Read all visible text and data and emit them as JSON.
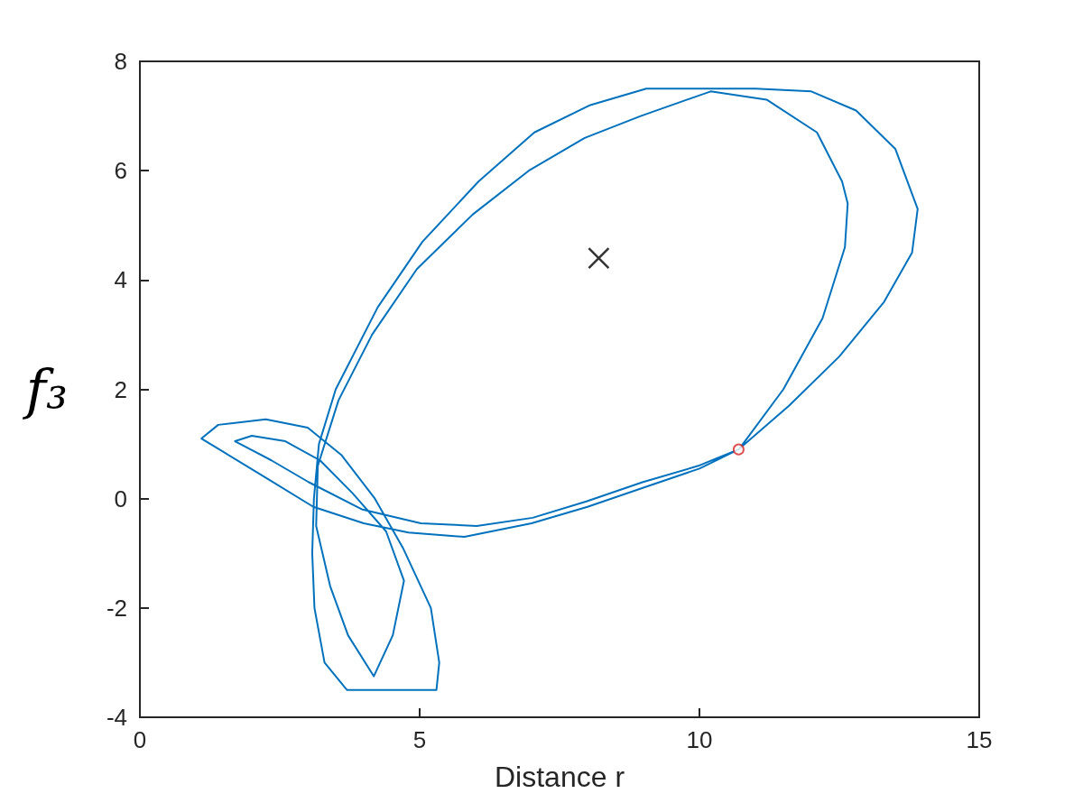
{
  "chart_data": {
    "type": "line",
    "xlabel": "Distance r",
    "ylabel": "f₃",
    "xlim": [
      0,
      15
    ],
    "xticks": [
      0,
      5,
      10,
      15
    ],
    "ylim": [
      -4,
      8
    ],
    "yticks": [
      -4,
      -2,
      0,
      2,
      4,
      6,
      8
    ],
    "series": [
      {
        "color": "#0072bd",
        "marker": "none",
        "line_style": "solid",
        "x": [
          10.7,
          10,
          9,
          8,
          7,
          5.8,
          4.8,
          4,
          3.1,
          2.3,
          1.5,
          1.1,
          1.4,
          2.25,
          3,
          3.6,
          4.2,
          4.7,
          5.2,
          5.35,
          5.3,
          4.5,
          3.7,
          3.3,
          3.12,
          3.08,
          3.11,
          3.2,
          3.5,
          4.25,
          5.05,
          6.05,
          7.05,
          8.05,
          9.05,
          10.05,
          11,
          12,
          12.8,
          13.5,
          13.9,
          13.8,
          13.3,
          12.5,
          11.6,
          10.72,
          11.5,
          12.2,
          12.6,
          12.65,
          12.55,
          12.1,
          11.2,
          10.2,
          8.95,
          7.95,
          6.95,
          5.95,
          4.95,
          4.15,
          3.55,
          3.18,
          3.15,
          3.4,
          3.72,
          4.18,
          4.52,
          4.72,
          4.4,
          3.8,
          3.22,
          2.6,
          2,
          1.7,
          2.35,
          3.02,
          3.98,
          5.02,
          6.02,
          7.02,
          7.98,
          8.98,
          9.98,
          10.65
        ],
        "values": [
          0.9,
          0.55,
          0.2,
          -0.15,
          -0.45,
          -0.7,
          -0.62,
          -0.45,
          -0.15,
          0.35,
          0.85,
          1.1,
          1.35,
          1.45,
          1.3,
          0.8,
          0,
          -0.9,
          -2,
          -3,
          -3.5,
          -3.5,
          -3.5,
          -3,
          -2,
          -1,
          0,
          1,
          2,
          3.5,
          4.7,
          5.8,
          6.7,
          7.2,
          7.5,
          7.5,
          7.5,
          7.45,
          7.1,
          6.4,
          5.3,
          4.5,
          3.6,
          2.6,
          1.7,
          0.92,
          2,
          3.3,
          4.6,
          5.4,
          5.8,
          6.7,
          7.3,
          7.45,
          7,
          6.6,
          6,
          5.2,
          4.2,
          3,
          1.8,
          0.6,
          -0.5,
          -1.6,
          -2.5,
          -3.25,
          -2.5,
          -1.5,
          -0.6,
          0.1,
          0.7,
          1.05,
          1.15,
          1.05,
          0.7,
          0.3,
          -0.2,
          -0.45,
          -0.5,
          -0.35,
          -0.05,
          0.3,
          0.6,
          0.88
        ]
      },
      {
        "type": "scatter",
        "color": "#000000",
        "marker": "cross",
        "x": [
          8.2
        ],
        "values": [
          4.4
        ]
      },
      {
        "type": "scatter",
        "color": "#d62728",
        "marker": "circle",
        "x": [
          10.7
        ],
        "values": [
          0.9
        ]
      }
    ]
  }
}
